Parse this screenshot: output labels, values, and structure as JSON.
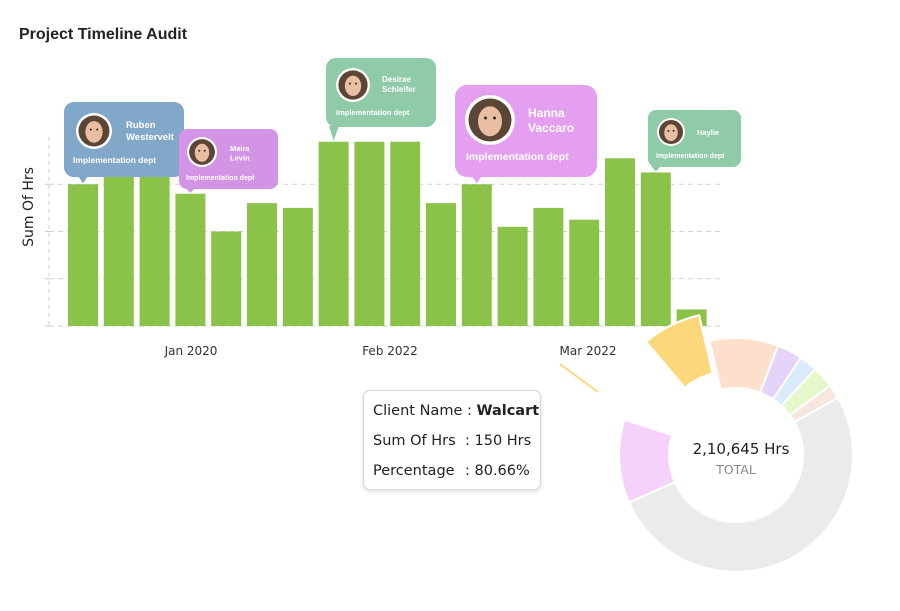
{
  "header": {
    "title": "Project Timeline Audit"
  },
  "chart_data": [
    {
      "type": "bar",
      "ylabel": "Sum Of Hrs",
      "xlabel": "",
      "x_tick_labels": [
        "Jan 2020",
        "Feb 2022",
        "Mar 2022"
      ],
      "ylim": [
        0,
        4
      ],
      "grid": true,
      "color": "#8bc34a",
      "values": [
        3.0,
        3.3,
        3.3,
        2.8,
        2.0,
        2.6,
        2.5,
        3.9,
        3.9,
        3.9,
        2.6,
        3.0,
        2.1,
        2.5,
        2.25,
        3.55,
        3.25,
        0.35
      ],
      "annotations": [
        {
          "bar": 0,
          "name_lines": [
            "Ruben",
            "Westervelt"
          ],
          "dept": "Implementation dept",
          "color": "#82a8c9",
          "avatar_icon": "person-avatar-icon"
        },
        {
          "bar": 3,
          "name_lines": [
            "Maira",
            "Levin"
          ],
          "dept": "Implementation dept",
          "color": "#d394e6",
          "avatar_icon": "person-avatar-icon"
        },
        {
          "bar": 7,
          "name_lines": [
            "Desirae",
            "Schleifer"
          ],
          "dept": "Implementation dept",
          "color": "#8fcaa9",
          "avatar_icon": "person-avatar-icon"
        },
        {
          "bar": 11,
          "name_lines": [
            "Hanna",
            "Vaccaro"
          ],
          "dept": "Implementation dept",
          "color": "#e49ff0",
          "avatar_icon": "person-avatar-icon"
        },
        {
          "bar": 16,
          "name_lines": [
            "Haylie"
          ],
          "dept": "Implementation dept",
          "color": "#8fcaa9",
          "avatar_icon": "person-avatar-icon"
        }
      ]
    },
    {
      "type": "pie",
      "center_value": "2,10,645 Hrs",
      "center_label": "TOTAL",
      "values": [
        7.5,
        9.5,
        3.5,
        2.5,
        3.0,
        2.0,
        51.5,
        11.5,
        9.0
      ],
      "colors": [
        "#fcd87a",
        "#fde0cc",
        "#e5d3f9",
        "#d9ebfb",
        "#e6f7cb",
        "#f6e8df",
        "#ebebeb",
        "#f6d1fb",
        "#ffffff"
      ],
      "highlighted_slice": 0
    }
  ],
  "tooltip": {
    "client_label": "Client Name :",
    "client_value": "Walcart",
    "hrs_label": "Sum Of Hrs",
    "hrs_value": ": 150 Hrs",
    "pct_label": "Percentage",
    "pct_value": ": 80.66%"
  }
}
